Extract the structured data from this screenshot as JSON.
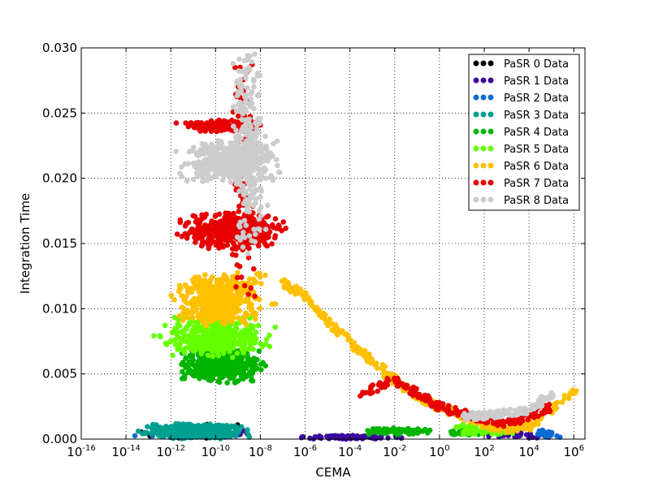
{
  "chart_data": {
    "type": "scatter",
    "xlabel": "CEMA",
    "ylabel": "Integration Time",
    "xscale": "log",
    "xlim_exp": [
      -16,
      6.5
    ],
    "ylim": [
      0,
      0.03
    ],
    "x_ticks": [
      {
        "base": "10",
        "exp": "-16",
        "e": -16
      },
      {
        "base": "10",
        "exp": "-14",
        "e": -14
      },
      {
        "base": "10",
        "exp": "-12",
        "e": -12
      },
      {
        "base": "10",
        "exp": "-10",
        "e": -10
      },
      {
        "base": "10",
        "exp": "-8",
        "e": -8
      },
      {
        "base": "10",
        "exp": "-6",
        "e": -6
      },
      {
        "base": "10",
        "exp": "-4",
        "e": -4
      },
      {
        "base": "10",
        "exp": "-2",
        "e": -2
      },
      {
        "base": "10",
        "exp": "0",
        "e": 0
      },
      {
        "base": "10",
        "exp": "2",
        "e": 2
      },
      {
        "base": "10",
        "exp": "4",
        "e": 4
      },
      {
        "base": "10",
        "exp": "6",
        "e": 6
      }
    ],
    "y_ticks": [
      {
        "label": "0.000",
        "v": 0
      },
      {
        "label": "0.005",
        "v": 0.005
      },
      {
        "label": "0.010",
        "v": 0.01
      },
      {
        "label": "0.015",
        "v": 0.015
      },
      {
        "label": "0.020",
        "v": 0.02
      },
      {
        "label": "0.025",
        "v": 0.025
      },
      {
        "label": "0.030",
        "v": 0.03
      }
    ],
    "grid": true,
    "legend_position": "top-right",
    "series": [
      {
        "name": "PaSR 0 Data",
        "color": "#000000",
        "clusters": [
          [
            -14,
            -8,
            0.0,
            0.0012,
            90
          ]
        ],
        "curve": []
      },
      {
        "name": "PaSR 1 Data",
        "color": "#3b0a9e",
        "clusters": [
          [
            -14,
            -8,
            0.0,
            0.001,
            60
          ],
          [
            -7,
            -1,
            0.0,
            0.0003,
            80
          ],
          [
            2,
            5,
            0.0,
            0.0008,
            30
          ]
        ],
        "curve": []
      },
      {
        "name": "PaSR 2 Data",
        "color": "#0a6bd0",
        "clusters": [
          [
            -14,
            -8,
            0.0,
            0.0009,
            60
          ],
          [
            4,
            5.5,
            0.0,
            0.0008,
            20
          ]
        ],
        "curve": []
      },
      {
        "name": "PaSR 3 Data",
        "color": "#00a090",
        "clusters": [
          [
            -14,
            -8,
            0.0,
            0.0012,
            450
          ]
        ],
        "curve": []
      },
      {
        "name": "PaSR 4 Data",
        "color": "#00b400",
        "clusters": [
          [
            -12,
            -7.5,
            0.0042,
            0.0072,
            420
          ],
          [
            -4,
            0,
            0.0003,
            0.0009,
            90
          ],
          [
            0,
            3,
            0.0003,
            0.0008,
            50
          ]
        ],
        "curve": []
      },
      {
        "name": "PaSR 5 Data",
        "color": "#66ff00",
        "clusters": [
          [
            -13,
            -7,
            0.0062,
            0.0095,
            420
          ],
          [
            0,
            4,
            0.0003,
            0.0012,
            80
          ]
        ],
        "curve": []
      },
      {
        "name": "PaSR 6 Data",
        "color": "#ffc000",
        "clusters": [
          [
            -12.5,
            -7,
            0.0085,
            0.013,
            420
          ]
        ],
        "curve": [
          [
            -7,
            0.012
          ],
          [
            -6,
            0.011
          ],
          [
            -5,
            0.009
          ],
          [
            -4,
            0.0075
          ],
          [
            -3,
            0.006
          ],
          [
            -2,
            0.0045
          ],
          [
            -1,
            0.0032
          ],
          [
            0,
            0.0025
          ],
          [
            1,
            0.0018
          ],
          [
            2,
            0.0012
          ],
          [
            3,
            0.0008
          ],
          [
            4,
            0.001
          ],
          [
            6,
            0.0036
          ]
        ]
      },
      {
        "name": "PaSR 7 Data",
        "color": "#e60000",
        "clusters": [
          [
            -12,
            -6.5,
            0.0145,
            0.0175,
            420
          ],
          [
            -12,
            -7,
            0.0235,
            0.0245,
            140
          ],
          [
            -9.5,
            -8,
            0.009,
            0.03,
            120
          ]
        ],
        "curve": [
          [
            -3.5,
            0.0035
          ],
          [
            -2,
            0.0045
          ],
          [
            -1,
            0.0035
          ],
          [
            0,
            0.0025
          ],
          [
            1,
            0.002
          ],
          [
            2,
            0.0015
          ],
          [
            3,
            0.0012
          ],
          [
            4,
            0.0018
          ],
          [
            5,
            0.0025
          ]
        ]
      },
      {
        "name": "PaSR 8 Data",
        "color": "#cccccc",
        "clusters": [
          [
            -12,
            -6.5,
            0.0195,
            0.023,
            450
          ],
          [
            -9.5,
            -7.5,
            0.014,
            0.03,
            260
          ]
        ],
        "curve": [
          [
            1,
            0.0017
          ],
          [
            2,
            0.0018
          ],
          [
            3,
            0.002
          ],
          [
            4,
            0.0022
          ],
          [
            5,
            0.0035
          ]
        ]
      }
    ]
  }
}
